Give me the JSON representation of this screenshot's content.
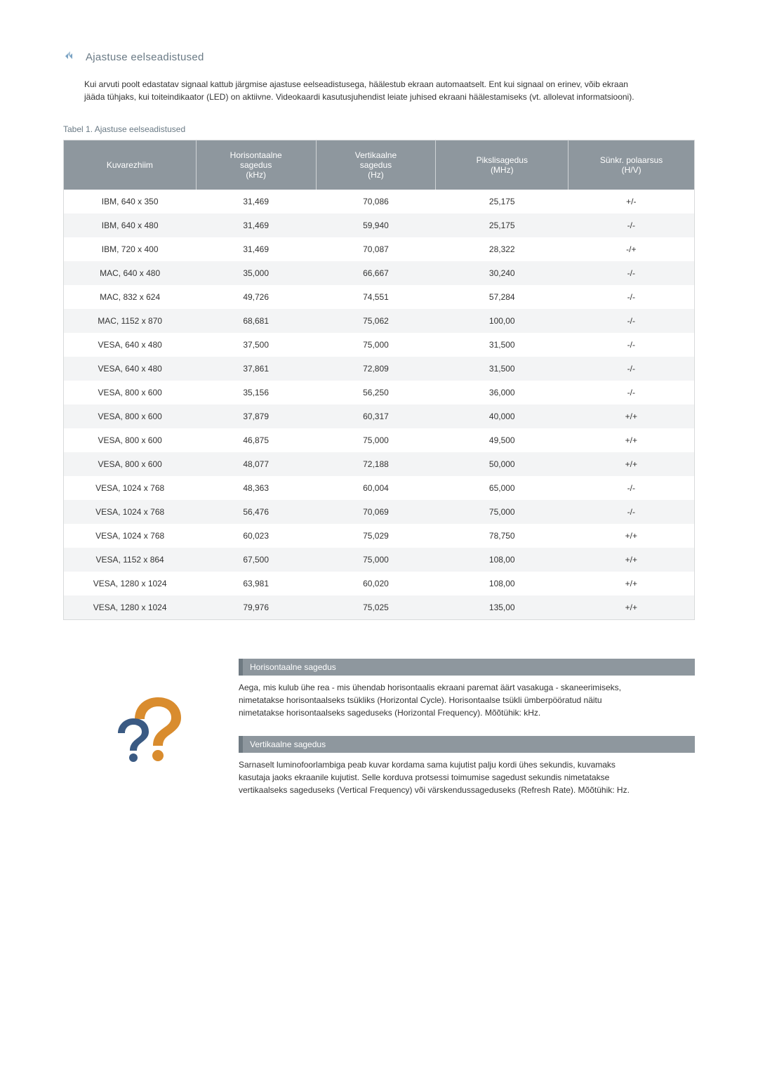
{
  "heading": "Ajastuse eelseadistused",
  "intro": "Kui arvuti poolt edastatav signaal kattub järgmise ajastuse eelseadistusega, häälestub ekraan automaatselt. Ent kui signaal on erinev, võib ekraan jääda tühjaks, kui toiteindikaator (LED) on aktiivne. Videokaardi kasutusjuhendist leiate juhised ekraani häälestamiseks (vt. allolevat informatsiooni).",
  "table_caption": "Tabel 1. Ajastuse eelseadistused",
  "headers": {
    "mode": "Kuvarezhiim",
    "hfreq": "Horisontaalne\nsagedus\n(kHz)",
    "vfreq": "Vertikaalne\nsagedus\n(Hz)",
    "pixel": "Pikslisagedus\n(MHz)",
    "sync": "Sünkr. polaarsus\n(H/V)"
  },
  "rows": [
    {
      "mode": "IBM, 640 x 350",
      "h": "31,469",
      "v": "70,086",
      "p": "25,175",
      "s": "+/-"
    },
    {
      "mode": "IBM, 640 x 480",
      "h": "31,469",
      "v": "59,940",
      "p": "25,175",
      "s": "-/-"
    },
    {
      "mode": "IBM, 720 x 400",
      "h": "31,469",
      "v": "70,087",
      "p": "28,322",
      "s": "-/+"
    },
    {
      "mode": "MAC, 640 x 480",
      "h": "35,000",
      "v": "66,667",
      "p": "30,240",
      "s": "-/-"
    },
    {
      "mode": "MAC, 832 x 624",
      "h": "49,726",
      "v": "74,551",
      "p": "57,284",
      "s": "-/-"
    },
    {
      "mode": "MAC, 1152 x 870",
      "h": "68,681",
      "v": "75,062",
      "p": "100,00",
      "s": "-/-"
    },
    {
      "mode": "VESA, 640 x 480",
      "h": "37,500",
      "v": "75,000",
      "p": "31,500",
      "s": "-/-"
    },
    {
      "mode": "VESA, 640 x 480",
      "h": "37,861",
      "v": "72,809",
      "p": "31,500",
      "s": "-/-"
    },
    {
      "mode": "VESA, 800 x 600",
      "h": "35,156",
      "v": "56,250",
      "p": "36,000",
      "s": "-/-"
    },
    {
      "mode": "VESA, 800 x 600",
      "h": "37,879",
      "v": "60,317",
      "p": "40,000",
      "s": "+/+"
    },
    {
      "mode": "VESA, 800 x 600",
      "h": "46,875",
      "v": "75,000",
      "p": "49,500",
      "s": "+/+"
    },
    {
      "mode": "VESA, 800 x 600",
      "h": "48,077",
      "v": "72,188",
      "p": "50,000",
      "s": "+/+"
    },
    {
      "mode": "VESA, 1024 x 768",
      "h": "48,363",
      "v": "60,004",
      "p": "65,000",
      "s": "-/-"
    },
    {
      "mode": "VESA, 1024 x 768",
      "h": "56,476",
      "v": "70,069",
      "p": "75,000",
      "s": "-/-"
    },
    {
      "mode": "VESA, 1024 x 768",
      "h": "60,023",
      "v": "75,029",
      "p": "78,750",
      "s": "+/+"
    },
    {
      "mode": "VESA, 1152 x 864",
      "h": "67,500",
      "v": "75,000",
      "p": "108,00",
      "s": "+/+"
    },
    {
      "mode": "VESA, 1280 x 1024",
      "h": "63,981",
      "v": "60,020",
      "p": "108,00",
      "s": "+/+"
    },
    {
      "mode": "VESA, 1280 x 1024",
      "h": "79,976",
      "v": "75,025",
      "p": "135,00",
      "s": "+/+"
    }
  ],
  "info": {
    "h_title": "Horisontaalne sagedus",
    "h_text": "Aega, mis kulub ühe rea - mis ühendab horisontaalis ekraani paremat äärt vasakuga - skaneerimiseks, nimetatakse horisontaalseks tsükliks (Horizontal Cycle). Horisontaalse tsükli ümberpööratud näitu nimetatakse horisontaalseks sageduseks (Horizontal Frequency). Mõõtühik: kHz.",
    "v_title": "Vertikaalne sagedus",
    "v_text": "Sarnaselt luminofoorlambiga peab kuvar kordama sama kujutist palju kordi ühes sekundis, kuvamaks kasutaja jaoks ekraanile kujutist. Selle korduva protsessi toimumise sagedust sekundis nimetatakse vertikaalseks sageduseks (Vertical Frequency) või värskendussageduseks (Refresh Rate). Mõõtühik: Hz."
  },
  "colors": {
    "header_bg": "#8e979e",
    "header_text": "#ffffff",
    "row_even": "#f3f4f5",
    "row_odd": "#ffffff",
    "border": "#d8dadb",
    "muted": "#6a7a85"
  }
}
